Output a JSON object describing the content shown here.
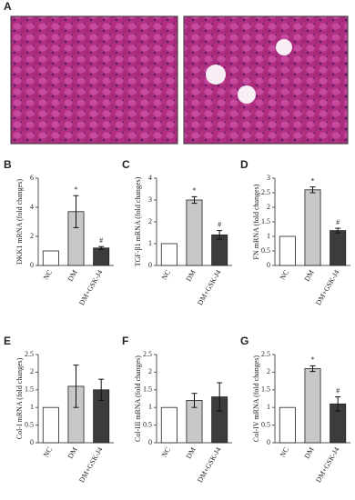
{
  "panel_a": {
    "label": "A"
  },
  "chart_data": [
    {
      "type": "bar",
      "panel": "B",
      "y_label": "DKK1 mRNA (fold changes)",
      "categories": [
        "NC",
        "DM",
        "DM+GSK-J4"
      ],
      "values": [
        1,
        3.7,
        1.2
      ],
      "errors": [
        0,
        1.1,
        0.1
      ],
      "markers": [
        null,
        "*",
        "#"
      ],
      "colors": [
        "#ffffff",
        "#c8c8c8",
        "#3c3c3c"
      ],
      "ylim": [
        0,
        6
      ],
      "yticks": [
        0,
        2,
        4,
        6
      ]
    },
    {
      "type": "bar",
      "panel": "C",
      "y_label": "TGF-β1 mRNA (fold changes)",
      "categories": [
        "NC",
        "DM",
        "DM+GSK-J4"
      ],
      "values": [
        1,
        3.0,
        1.4
      ],
      "errors": [
        0,
        0.15,
        0.2
      ],
      "markers": [
        null,
        "*",
        "#"
      ],
      "colors": [
        "#ffffff",
        "#c8c8c8",
        "#3c3c3c"
      ],
      "ylim": [
        0,
        4
      ],
      "yticks": [
        0,
        1,
        2,
        3,
        4
      ]
    },
    {
      "type": "bar",
      "panel": "D",
      "y_label": "FN mRNA (fold changes)",
      "categories": [
        "NC",
        "DM",
        "DM+GSK-J4"
      ],
      "values": [
        1,
        2.6,
        1.2
      ],
      "errors": [
        0,
        0.1,
        0.08
      ],
      "markers": [
        null,
        "*",
        "#"
      ],
      "colors": [
        "#ffffff",
        "#c8c8c8",
        "#3c3c3c"
      ],
      "ylim": [
        0,
        3
      ],
      "yticks": [
        0,
        0.5,
        1,
        1.5,
        2,
        2.5,
        3
      ]
    },
    {
      "type": "bar",
      "panel": "E",
      "y_label": "Col-I mRNA (fold changes)",
      "categories": [
        "NC",
        "DM",
        "DM+GSK-J4"
      ],
      "values": [
        1,
        1.6,
        1.5
      ],
      "errors": [
        0,
        0.6,
        0.3
      ],
      "markers": [
        null,
        null,
        null
      ],
      "colors": [
        "#ffffff",
        "#c8c8c8",
        "#3c3c3c"
      ],
      "ylim": [
        0,
        2.5
      ],
      "yticks": [
        0,
        0.5,
        1,
        1.5,
        2,
        2.5
      ]
    },
    {
      "type": "bar",
      "panel": "F",
      "y_label": "Col-III mRNA (fold changes)",
      "categories": [
        "NC",
        "DM",
        "DM+GSK-J4"
      ],
      "values": [
        1,
        1.2,
        1.3
      ],
      "errors": [
        0,
        0.2,
        0.4
      ],
      "markers": [
        null,
        null,
        null
      ],
      "colors": [
        "#ffffff",
        "#c8c8c8",
        "#3c3c3c"
      ],
      "ylim": [
        0,
        2.5
      ],
      "yticks": [
        0,
        0.5,
        1,
        1.5,
        2,
        2.5
      ]
    },
    {
      "type": "bar",
      "panel": "G",
      "y_label": "Col-IV mRNA (fold changes)",
      "categories": [
        "NC",
        "DM",
        "DM+GSK-J4"
      ],
      "values": [
        1,
        2.1,
        1.1
      ],
      "errors": [
        0,
        0.08,
        0.2
      ],
      "markers": [
        null,
        "*",
        "#"
      ],
      "colors": [
        "#ffffff",
        "#c8c8c8",
        "#3c3c3c"
      ],
      "ylim": [
        0,
        2.5
      ],
      "yticks": [
        0,
        0.5,
        1,
        1.5,
        2,
        2.5
      ]
    }
  ]
}
